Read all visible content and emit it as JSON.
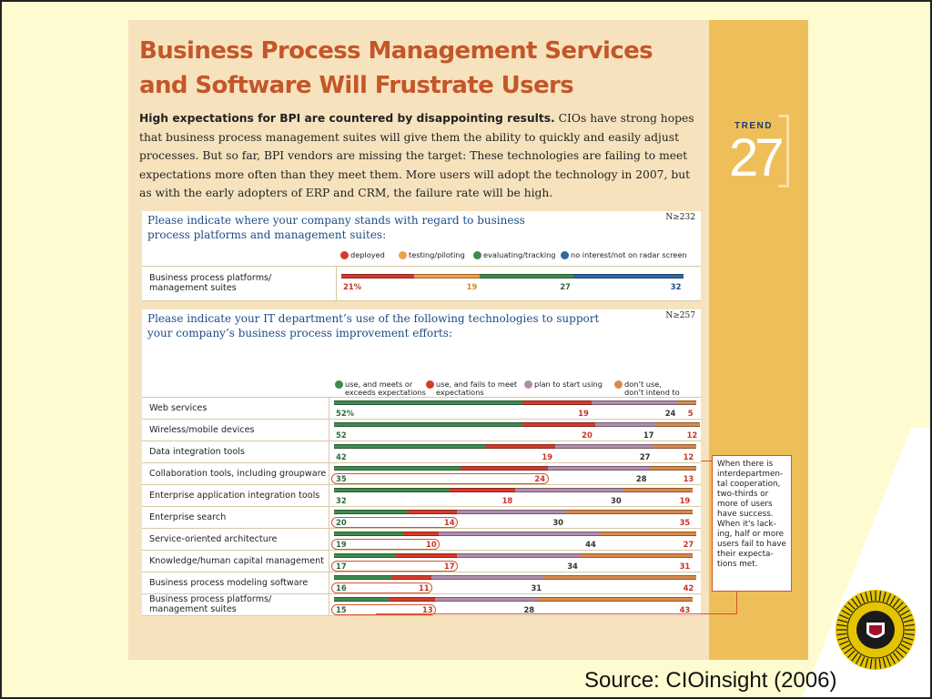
{
  "article": {
    "headline_line1": "Business Process Management Services",
    "headline_line2": "and Software Will Frustrate Users",
    "intro_bold": "High expectations for BPI are countered by disappointing results.",
    "intro_text": "CIOs have strong hopes that business process management suites will give them the ability to quickly and easily adjust processes. But so far, BPI vendors are missing the target: These technologies are failing to meet expectations more often than they meet them. More users will adopt the technology in 2007, but as with the early adopters of ERP and CRM, the failure rate will be high.",
    "trend_label": "TREND",
    "trend_number": "27"
  },
  "callout": {
    "text": "When there is interdepartmen-tal cooperation, two-thirds or more of users have success. When it's lack-ing, half or more users fail to have their expecta-tions met."
  },
  "source": "Source: CIOinsight (2006)",
  "chart_data": [
    {
      "type": "bar",
      "orientation": "horizontal-stacked",
      "title": "Please indicate where your company stands with regard to business process platforms and management suites:",
      "title_line1": "Please indicate where your company stands with regard to business",
      "title_line2": "process platforms and management suites:",
      "base": "N≥232",
      "legend": [
        {
          "name": "deployed",
          "color": "#d63a2c"
        },
        {
          "name": "testing/piloting",
          "color": "#f0a04a"
        },
        {
          "name": "evaluating/tracking",
          "color": "#3f8a4e"
        },
        {
          "name": "no interest/not on radar screen",
          "color": "#2a6aa4"
        }
      ],
      "categories": [
        "Business process platforms/ management suites"
      ],
      "category_lines": [
        [
          "Business process platforms/",
          "management suites"
        ]
      ],
      "series": [
        {
          "name": "deployed",
          "values": [
            21
          ],
          "labels": [
            "21%"
          ]
        },
        {
          "name": "testing/piloting",
          "values": [
            19
          ],
          "labels": [
            "19"
          ]
        },
        {
          "name": "evaluating/tracking",
          "values": [
            27
          ],
          "labels": [
            "27"
          ]
        },
        {
          "name": "no interest/not on radar screen",
          "values": [
            32
          ],
          "labels": [
            "32"
          ]
        }
      ]
    },
    {
      "type": "bar",
      "orientation": "horizontal-stacked",
      "title": "Please indicate your IT department's use of the following technologies to support your company's business process improvement efforts:",
      "title_line1": "Please indicate your IT department’s use of the following technologies to support",
      "title_line2": "your company’s business process improvement efforts:",
      "base": "N≥257",
      "legend": [
        {
          "name": "use, and meets or exceeds expectations",
          "line1": "use, and meets or",
          "line2": "exceeds expectations",
          "color": "#3f8a4e"
        },
        {
          "name": "use, and fails to meet expectations",
          "line1": "use, and fails to meet",
          "line2": "expectations",
          "color": "#d63a2c"
        },
        {
          "name": "plan to start using",
          "line1": "plan to start using",
          "line2": "",
          "color": "#b38cab"
        },
        {
          "name": "don't use, don't intend to",
          "line1": "don’t use,",
          "line2": "don’t intend to",
          "color": "#d9894a"
        }
      ],
      "categories": [
        "Web services",
        "Wireless/mobile devices",
        "Data integration tools",
        "Collaboration tools, including groupware",
        "Enterprise application integration tools",
        "Enterprise search",
        "Service-oriented architecture",
        "Knowledge/human capital management",
        "Business process modeling software",
        "Business process platforms/ management suites"
      ],
      "category_lines": [
        [
          "Web services"
        ],
        [
          "Wireless/mobile devices"
        ],
        [
          "Data integration tools"
        ],
        [
          "Collaboration tools, including groupware"
        ],
        [
          "Enterprise application integration tools"
        ],
        [
          "Enterprise search"
        ],
        [
          "Service-oriented architecture"
        ],
        [
          "Knowledge/human capital management"
        ],
        [
          "Business process modeling software"
        ],
        [
          "Business process platforms/",
          "management suites"
        ]
      ],
      "series": [
        {
          "name": "use, and meets or exceeds expectations",
          "values": [
            52,
            52,
            42,
            35,
            32,
            20,
            19,
            17,
            16,
            15
          ],
          "labels": [
            "52%",
            "52",
            "42",
            "35",
            "32",
            "20",
            "19",
            "17",
            "16",
            "15"
          ]
        },
        {
          "name": "use, and fails to meet expectations",
          "values": [
            19,
            20,
            19,
            24,
            18,
            14,
            10,
            17,
            11,
            13
          ],
          "labels": [
            "19",
            "20",
            "19",
            "24",
            "18",
            "14",
            "10",
            "17",
            "11",
            "13"
          ]
        },
        {
          "name": "plan to start using",
          "values": [
            24,
            17,
            27,
            28,
            30,
            30,
            44,
            34,
            31,
            28
          ],
          "labels": [
            "24",
            "17",
            "27",
            "28",
            "30",
            "30",
            "44",
            "34",
            "31",
            "28"
          ]
        },
        {
          "name": "don't use, don't intend to",
          "values": [
            5,
            12,
            12,
            13,
            19,
            35,
            27,
            31,
            42,
            43
          ],
          "labels": [
            "5",
            "12",
            "12",
            "13",
            "19",
            "35",
            "27",
            "31",
            "42",
            "43"
          ]
        }
      ],
      "circled_fail_rows": [
        3,
        5,
        6,
        7,
        8,
        9
      ]
    }
  ]
}
